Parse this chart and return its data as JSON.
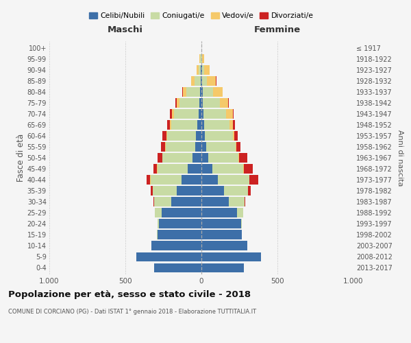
{
  "age_groups": [
    "0-4",
    "5-9",
    "10-14",
    "15-19",
    "20-24",
    "25-29",
    "30-34",
    "35-39",
    "40-44",
    "45-49",
    "50-54",
    "55-59",
    "60-64",
    "65-69",
    "70-74",
    "75-79",
    "80-84",
    "85-89",
    "90-94",
    "95-99",
    "100+"
  ],
  "birth_years": [
    "2013-2017",
    "2008-2012",
    "2003-2007",
    "1998-2002",
    "1993-1997",
    "1988-1992",
    "1983-1987",
    "1978-1982",
    "1973-1977",
    "1968-1972",
    "1963-1967",
    "1958-1962",
    "1953-1957",
    "1948-1952",
    "1943-1947",
    "1938-1942",
    "1933-1937",
    "1928-1932",
    "1923-1927",
    "1918-1922",
    "≤ 1917"
  ],
  "colors": {
    "single": "#3d6fa8",
    "married": "#c8dba4",
    "widowed": "#f5c96a",
    "divorced": "#cc2222"
  },
  "males": {
    "single": [
      310,
      430,
      330,
      290,
      280,
      260,
      200,
      160,
      130,
      90,
      60,
      40,
      35,
      25,
      20,
      12,
      8,
      4,
      3,
      2,
      1
    ],
    "married": [
      0,
      0,
      0,
      2,
      10,
      45,
      110,
      160,
      205,
      200,
      195,
      195,
      190,
      175,
      160,
      130,
      90,
      40,
      15,
      5,
      0
    ],
    "widowed": [
      0,
      0,
      0,
      0,
      0,
      0,
      0,
      1,
      2,
      2,
      2,
      3,
      5,
      8,
      15,
      20,
      25,
      22,
      15,
      5,
      0
    ],
    "divorced": [
      0,
      0,
      0,
      0,
      0,
      2,
      5,
      12,
      22,
      22,
      30,
      28,
      25,
      18,
      12,
      10,
      5,
      2,
      0,
      0,
      0
    ]
  },
  "females": {
    "single": [
      280,
      390,
      300,
      265,
      260,
      235,
      180,
      150,
      110,
      70,
      45,
      30,
      22,
      18,
      15,
      10,
      8,
      5,
      4,
      2,
      0
    ],
    "married": [
      0,
      0,
      0,
      2,
      8,
      40,
      105,
      155,
      205,
      205,
      200,
      195,
      185,
      165,
      145,
      110,
      70,
      30,
      12,
      2,
      0
    ],
    "widowed": [
      0,
      0,
      0,
      0,
      0,
      0,
      0,
      1,
      2,
      4,
      4,
      5,
      10,
      25,
      45,
      55,
      60,
      60,
      40,
      15,
      1
    ],
    "divorced": [
      0,
      0,
      0,
      0,
      0,
      2,
      5,
      18,
      55,
      60,
      55,
      28,
      20,
      12,
      8,
      5,
      3,
      2,
      0,
      0,
      0
    ]
  },
  "title": "Popolazione per età, sesso e stato civile - 2018",
  "subtitle": "COMUNE DI CORCIANO (PG) - Dati ISTAT 1° gennaio 2018 - Elaborazione TUTTITALIA.IT",
  "legend_labels": [
    "Celibi/Nubili",
    "Coniugati/e",
    "Vedovi/e",
    "Divorziati/e"
  ],
  "label_maschi": "Maschi",
  "label_femmine": "Femmine",
  "ylabel_left": "Fasce di età",
  "ylabel_right": "Anni di nascita",
  "xlim": 1000,
  "background_color": "#f5f5f5",
  "grid_color": "#cccccc"
}
